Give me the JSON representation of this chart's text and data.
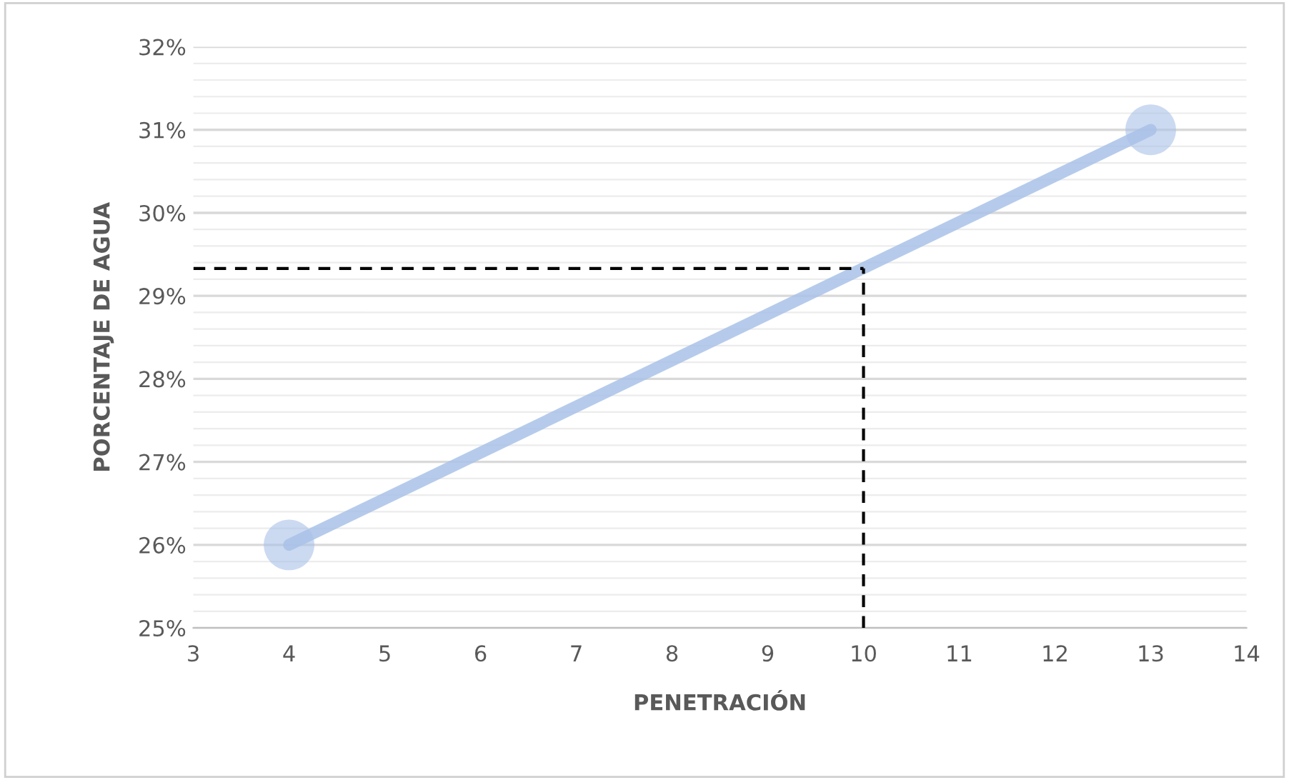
{
  "chart_data": {
    "type": "line",
    "xlabel": "PENETRACIÓN",
    "ylabel": "PORCENTAJE DE AGUA",
    "x": [
      4,
      13
    ],
    "series": [
      {
        "color": "#a9c2e8",
        "values": [
          26,
          31
        ]
      }
    ],
    "marker": "circle",
    "xlim": [
      3,
      14
    ],
    "xticks": [
      3,
      4,
      5,
      6,
      7,
      8,
      9,
      10,
      11,
      12,
      13,
      14
    ],
    "ylim": [
      25,
      32
    ],
    "yticks": [
      {
        "value": 25,
        "label": "25%"
      },
      {
        "value": 26,
        "label": "26%"
      },
      {
        "value": 27,
        "label": "27%"
      },
      {
        "value": 28,
        "label": "28%"
      },
      {
        "value": 29,
        "label": "29%"
      },
      {
        "value": 30,
        "label": "30%"
      },
      {
        "value": 31,
        "label": "31%"
      },
      {
        "value": 32,
        "label": "32%"
      }
    ],
    "grid": "y",
    "ref_lines": [
      {
        "axis": "x",
        "value": 10,
        "color": "#000000",
        "line_style": "dashed"
      },
      {
        "axis": "y",
        "value": 29.33,
        "color": "#000000",
        "line_style": "dashed"
      }
    ]
  }
}
